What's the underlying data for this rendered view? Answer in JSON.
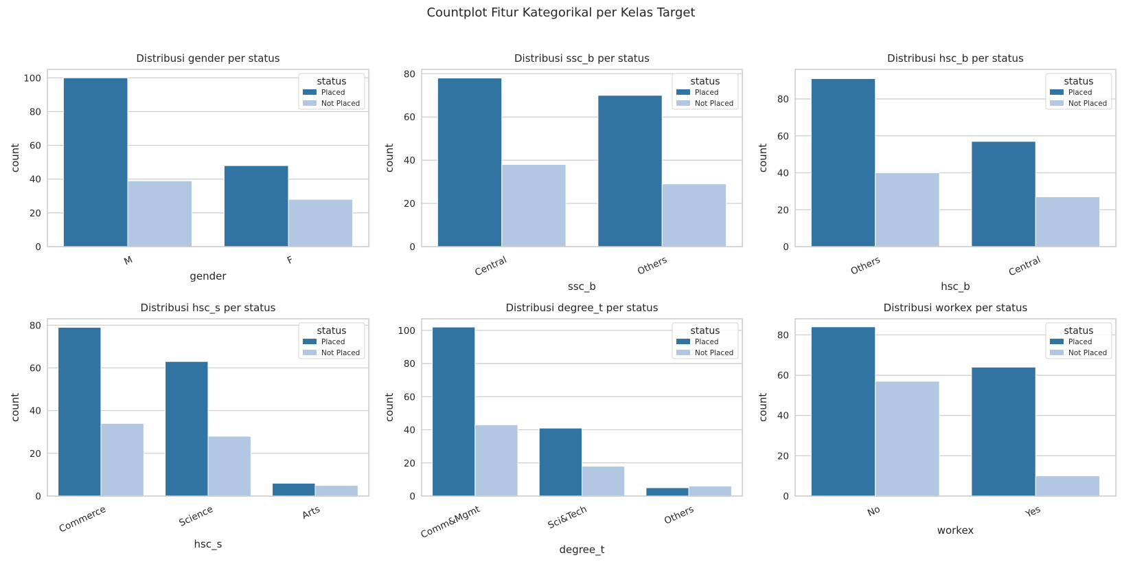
{
  "figure_title": "Countplot Fitur Kategorikal per Kelas Target",
  "colors": {
    "placed": "#3274a1",
    "not_placed": "#b2c7e2",
    "grid": "#cccccc",
    "spine": "#cccccc",
    "text": "#262626"
  },
  "chart_data": [
    {
      "type": "bar",
      "title": "Distribusi gender per status",
      "xlabel": "gender",
      "ylabel": "count",
      "categories": [
        "M",
        "F"
      ],
      "ylim": [
        0,
        105
      ],
      "yticks": [
        0,
        20,
        40,
        60,
        80,
        100
      ],
      "tick_rotation": 25,
      "legend": {
        "title": "status",
        "placement": "top-right"
      },
      "grid": true,
      "series": [
        {
          "name": "Placed",
          "values": [
            100,
            48
          ]
        },
        {
          "name": "Not Placed",
          "values": [
            39,
            28
          ]
        }
      ]
    },
    {
      "type": "bar",
      "title": "Distribusi ssc_b per status",
      "xlabel": "ssc_b",
      "ylabel": "count",
      "categories": [
        "Central",
        "Others"
      ],
      "ylim": [
        0,
        82
      ],
      "yticks": [
        0,
        20,
        40,
        60,
        80
      ],
      "tick_rotation": 25,
      "legend": {
        "title": "status",
        "placement": "top-right"
      },
      "grid": true,
      "series": [
        {
          "name": "Placed",
          "values": [
            78,
            70
          ]
        },
        {
          "name": "Not Placed",
          "values": [
            38,
            29
          ]
        }
      ]
    },
    {
      "type": "bar",
      "title": "Distribusi hsc_b per status",
      "xlabel": "hsc_b",
      "ylabel": "count",
      "categories": [
        "Others",
        "Central"
      ],
      "ylim": [
        0,
        96
      ],
      "yticks": [
        0,
        20,
        40,
        60,
        80
      ],
      "tick_rotation": 25,
      "legend": {
        "title": "status",
        "placement": "top-right"
      },
      "grid": true,
      "series": [
        {
          "name": "Placed",
          "values": [
            91,
            57
          ]
        },
        {
          "name": "Not Placed",
          "values": [
            40,
            27
          ]
        }
      ]
    },
    {
      "type": "bar",
      "title": "Distribusi hsc_s per status",
      "xlabel": "hsc_s",
      "ylabel": "count",
      "categories": [
        "Commerce",
        "Science",
        "Arts"
      ],
      "ylim": [
        0,
        83
      ],
      "yticks": [
        0,
        20,
        40,
        60,
        80
      ],
      "tick_rotation": 25,
      "legend": {
        "title": "status",
        "placement": "top-right"
      },
      "grid": true,
      "series": [
        {
          "name": "Placed",
          "values": [
            79,
            63,
            6
          ]
        },
        {
          "name": "Not Placed",
          "values": [
            34,
            28,
            5
          ]
        }
      ]
    },
    {
      "type": "bar",
      "title": "Distribusi degree_t per status",
      "xlabel": "degree_t",
      "ylabel": "count",
      "categories": [
        "Comm&Mgmt",
        "Sci&Tech",
        "Others"
      ],
      "ylim": [
        0,
        107
      ],
      "yticks": [
        0,
        20,
        40,
        60,
        80,
        100
      ],
      "tick_rotation": 25,
      "legend": {
        "title": "status",
        "placement": "top-right"
      },
      "grid": true,
      "series": [
        {
          "name": "Placed",
          "values": [
            102,
            41,
            5
          ]
        },
        {
          "name": "Not Placed",
          "values": [
            43,
            18,
            6
          ]
        }
      ]
    },
    {
      "type": "bar",
      "title": "Distribusi workex per status",
      "xlabel": "workex",
      "ylabel": "count",
      "categories": [
        "No",
        "Yes"
      ],
      "ylim": [
        0,
        88
      ],
      "yticks": [
        0,
        20,
        40,
        60,
        80
      ],
      "tick_rotation": 25,
      "legend": {
        "title": "status",
        "placement": "top-right"
      },
      "grid": true,
      "series": [
        {
          "name": "Placed",
          "values": [
            84,
            64
          ]
        },
        {
          "name": "Not Placed",
          "values": [
            57,
            10
          ]
        }
      ]
    }
  ]
}
